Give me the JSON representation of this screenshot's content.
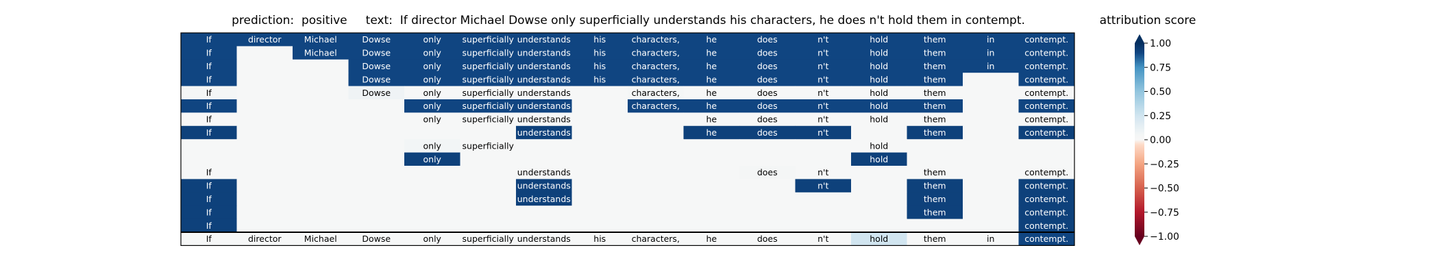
{
  "header": {
    "prediction_label": "prediction:",
    "prediction_value": "positive",
    "text_label": "text:",
    "text_value": "If director Michael Dowse only superficially understands his characters, he does n't hold them in contempt."
  },
  "colorbar": {
    "title": "attribution score",
    "range": [
      -1.0,
      1.0
    ],
    "ticks": [
      "1.00",
      "0.75",
      "0.50",
      "0.25",
      "0.00",
      "−0.25",
      "−0.50",
      "−0.75",
      "−1.00"
    ],
    "tick_values": [
      1.0,
      0.75,
      0.5,
      0.25,
      0.0,
      -0.25,
      -0.5,
      -0.75,
      -1.0
    ],
    "colormap": "RdBu",
    "extend": "both"
  },
  "chart_data": {
    "type": "heatmap",
    "tokens": [
      "If",
      "director",
      "Michael",
      "Dowse",
      "only",
      "superficially",
      "understands",
      "his",
      "characters,",
      "he",
      "does",
      "n't",
      "hold",
      "them",
      "in",
      "contempt."
    ],
    "rows": [
      {
        "shown": [
          1,
          1,
          1,
          1,
          1,
          1,
          1,
          1,
          1,
          1,
          1,
          1,
          1,
          1,
          1,
          1
        ],
        "values": [
          0.9,
          0.9,
          0.9,
          0.9,
          0.9,
          0.9,
          0.9,
          0.9,
          0.9,
          0.9,
          0.9,
          0.9,
          0.9,
          0.9,
          0.9,
          0.9
        ]
      },
      {
        "shown": [
          1,
          0,
          1,
          1,
          1,
          1,
          1,
          1,
          1,
          1,
          1,
          1,
          1,
          1,
          1,
          1
        ],
        "values": [
          0.9,
          0.02,
          0.9,
          0.9,
          0.9,
          0.9,
          0.9,
          0.9,
          0.9,
          0.9,
          0.9,
          0.9,
          0.9,
          0.9,
          0.9,
          0.9
        ]
      },
      {
        "shown": [
          1,
          0,
          0,
          1,
          1,
          1,
          1,
          1,
          1,
          1,
          1,
          1,
          1,
          1,
          1,
          1
        ],
        "values": [
          0.9,
          0.02,
          0.02,
          0.9,
          0.9,
          0.9,
          0.9,
          0.9,
          0.9,
          0.9,
          0.9,
          0.9,
          0.9,
          0.9,
          0.9,
          0.9
        ]
      },
      {
        "shown": [
          1,
          0,
          0,
          1,
          1,
          1,
          1,
          1,
          1,
          1,
          1,
          1,
          1,
          1,
          0,
          1
        ],
        "values": [
          0.9,
          0.02,
          0.02,
          0.9,
          0.9,
          0.9,
          0.9,
          0.9,
          0.9,
          0.9,
          0.9,
          0.9,
          0.9,
          0.9,
          0.02,
          0.9
        ]
      },
      {
        "shown": [
          1,
          0,
          0,
          1,
          1,
          1,
          1,
          0,
          1,
          1,
          1,
          1,
          1,
          1,
          0,
          1
        ],
        "values": [
          0.05,
          0.02,
          0.02,
          0.08,
          0.02,
          0.02,
          0.02,
          0.02,
          0.05,
          0.02,
          0.02,
          0.02,
          0.02,
          0.02,
          0.02,
          0.02
        ]
      },
      {
        "shown": [
          1,
          0,
          0,
          0,
          1,
          1,
          1,
          0,
          1,
          1,
          1,
          1,
          1,
          1,
          0,
          1
        ],
        "values": [
          0.9,
          0.02,
          0.02,
          0.02,
          0.9,
          0.9,
          0.9,
          0.02,
          0.9,
          0.9,
          0.9,
          0.9,
          0.9,
          0.9,
          0.02,
          0.9
        ]
      },
      {
        "shown": [
          1,
          0,
          0,
          0,
          1,
          1,
          1,
          0,
          0,
          1,
          1,
          1,
          1,
          1,
          0,
          1
        ],
        "values": [
          0.0,
          0.02,
          0.02,
          0.02,
          0.02,
          0.02,
          0.02,
          0.02,
          0.02,
          0.02,
          0.02,
          0.02,
          0.02,
          0.02,
          0.02,
          0.02
        ]
      },
      {
        "shown": [
          1,
          0,
          0,
          0,
          0,
          0,
          1,
          0,
          0,
          1,
          1,
          1,
          0,
          1,
          0,
          1
        ],
        "values": [
          0.92,
          0.02,
          0.02,
          0.02,
          0.02,
          0.02,
          0.92,
          0.02,
          0.02,
          0.92,
          0.92,
          0.92,
          0.02,
          0.92,
          0.02,
          0.92
        ]
      },
      {
        "shown": [
          0,
          0,
          0,
          0,
          1,
          1,
          0,
          0,
          0,
          0,
          0,
          0,
          1,
          0,
          0,
          0
        ],
        "values": [
          0.02,
          0.02,
          0.02,
          0.02,
          0.06,
          0.02,
          0.02,
          0.02,
          0.02,
          0.02,
          0.02,
          0.02,
          0.02,
          0.02,
          0.02,
          0.02
        ]
      },
      {
        "shown": [
          0,
          0,
          0,
          0,
          1,
          0,
          0,
          0,
          0,
          0,
          0,
          0,
          1,
          0,
          0,
          0
        ],
        "values": [
          0.02,
          0.02,
          0.02,
          0.02,
          0.92,
          0.02,
          0.02,
          0.02,
          0.02,
          0.02,
          0.02,
          0.02,
          0.92,
          0.02,
          0.02,
          0.02
        ]
      },
      {
        "shown": [
          1,
          0,
          0,
          0,
          0,
          0,
          1,
          0,
          0,
          0,
          1,
          1,
          0,
          1,
          0,
          1
        ],
        "values": [
          0.02,
          0.02,
          0.02,
          0.02,
          0.02,
          0.02,
          0.02,
          0.02,
          0.02,
          0.02,
          0.05,
          0.02,
          0.02,
          0.02,
          0.02,
          0.02
        ]
      },
      {
        "shown": [
          1,
          0,
          0,
          0,
          0,
          0,
          1,
          0,
          0,
          0,
          0,
          1,
          0,
          1,
          0,
          1
        ],
        "values": [
          0.92,
          0.02,
          0.02,
          0.02,
          0.02,
          0.02,
          0.92,
          0.02,
          0.02,
          0.02,
          0.02,
          0.92,
          0.02,
          0.92,
          0.02,
          0.92
        ]
      },
      {
        "shown": [
          1,
          0,
          0,
          0,
          0,
          0,
          1,
          0,
          0,
          0,
          0,
          0,
          0,
          1,
          0,
          1
        ],
        "values": [
          0.92,
          0.02,
          0.02,
          0.02,
          0.02,
          0.02,
          0.92,
          0.02,
          0.02,
          0.02,
          0.02,
          0.02,
          0.02,
          0.92,
          0.02,
          0.92
        ]
      },
      {
        "shown": [
          1,
          0,
          0,
          0,
          0,
          0,
          0,
          0,
          0,
          0,
          0,
          0,
          0,
          1,
          0,
          1
        ],
        "values": [
          0.92,
          0.02,
          0.02,
          0.02,
          0.02,
          0.02,
          0.02,
          0.02,
          0.02,
          0.02,
          0.02,
          0.02,
          0.02,
          0.92,
          0.02,
          0.92
        ]
      },
      {
        "shown": [
          1,
          0,
          0,
          0,
          0,
          0,
          0,
          0,
          0,
          0,
          0,
          0,
          0,
          0,
          0,
          1
        ],
        "values": [
          0.92,
          0.02,
          0.02,
          0.02,
          0.02,
          0.02,
          0.02,
          0.02,
          0.02,
          0.02,
          0.02,
          0.02,
          0.02,
          0.02,
          0.02,
          0.92
        ]
      },
      {
        "shown": [
          1,
          1,
          1,
          1,
          1,
          1,
          1,
          1,
          1,
          1,
          1,
          1,
          1,
          1,
          1,
          1
        ],
        "values": [
          0.02,
          0.02,
          0.02,
          0.02,
          0.02,
          0.02,
          0.02,
          0.02,
          0.02,
          0.02,
          0.02,
          0.02,
          0.25,
          0.02,
          0.02,
          0.9
        ]
      }
    ]
  }
}
